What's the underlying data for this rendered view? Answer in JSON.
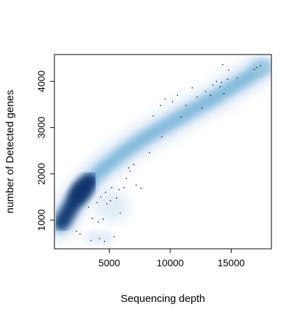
{
  "chart_data": {
    "type": "scatter",
    "subtype": "smoothed-density-scatter",
    "xlabel": "Sequencing depth",
    "ylabel": "number of Detected genes",
    "xlim": [
      500,
      18300
    ],
    "ylim": [
      380,
      4580
    ],
    "xticks": [
      5000,
      10000,
      15000
    ],
    "xtick_labels": [
      "5000",
      "10000",
      "15000"
    ],
    "yticks": [
      1000,
      2000,
      3000,
      4000
    ],
    "ytick_labels": [
      "1000",
      "2000",
      "3000",
      "4000"
    ],
    "grid": false,
    "density_color": "#08306b",
    "density_trend": [
      {
        "x": 1000,
        "y": 880
      },
      {
        "x": 1500,
        "y": 1100
      },
      {
        "x": 2000,
        "y": 1380
      },
      {
        "x": 2500,
        "y": 1580
      },
      {
        "x": 3000,
        "y": 1720
      },
      {
        "x": 3500,
        "y": 1870
      },
      {
        "x": 4000,
        "y": 2000
      },
      {
        "x": 4500,
        "y": 2120
      },
      {
        "x": 5000,
        "y": 2220
      },
      {
        "x": 6000,
        "y": 2430
      },
      {
        "x": 7000,
        "y": 2620
      },
      {
        "x": 8000,
        "y": 2790
      },
      {
        "x": 9000,
        "y": 2950
      },
      {
        "x": 10000,
        "y": 3100
      },
      {
        "x": 11000,
        "y": 3250
      },
      {
        "x": 12000,
        "y": 3400
      },
      {
        "x": 13000,
        "y": 3550
      },
      {
        "x": 14000,
        "y": 3700
      },
      {
        "x": 15000,
        "y": 3870
      },
      {
        "x": 16000,
        "y": 4020
      },
      {
        "x": 17000,
        "y": 4200
      },
      {
        "x": 17600,
        "y": 4300
      }
    ],
    "outlier_points": [
      {
        "x": 2300,
        "y": 760
      },
      {
        "x": 2600,
        "y": 700
      },
      {
        "x": 3500,
        "y": 560
      },
      {
        "x": 4200,
        "y": 600
      },
      {
        "x": 4600,
        "y": 540
      },
      {
        "x": 5400,
        "y": 640
      },
      {
        "x": 3600,
        "y": 1040
      },
      {
        "x": 4100,
        "y": 960
      },
      {
        "x": 4500,
        "y": 1020
      },
      {
        "x": 3300,
        "y": 1280
      },
      {
        "x": 4000,
        "y": 1380
      },
      {
        "x": 4300,
        "y": 1500
      },
      {
        "x": 4800,
        "y": 1350
      },
      {
        "x": 5100,
        "y": 1420
      },
      {
        "x": 5600,
        "y": 1480
      },
      {
        "x": 5900,
        "y": 1150
      },
      {
        "x": 4700,
        "y": 1600
      },
      {
        "x": 5200,
        "y": 1700
      },
      {
        "x": 5800,
        "y": 1660
      },
      {
        "x": 6200,
        "y": 1700
      },
      {
        "x": 7200,
        "y": 1760
      },
      {
        "x": 7600,
        "y": 1690
      },
      {
        "x": 6400,
        "y": 1900
      },
      {
        "x": 6700,
        "y": 2060
      },
      {
        "x": 6600,
        "y": 2130
      },
      {
        "x": 7000,
        "y": 2200
      },
      {
        "x": 8300,
        "y": 2460
      },
      {
        "x": 9300,
        "y": 2800
      },
      {
        "x": 8600,
        "y": 3250
      },
      {
        "x": 9200,
        "y": 3480
      },
      {
        "x": 9600,
        "y": 3620
      },
      {
        "x": 10200,
        "y": 3560
      },
      {
        "x": 10600,
        "y": 3700
      },
      {
        "x": 10900,
        "y": 3230
      },
      {
        "x": 11300,
        "y": 3480
      },
      {
        "x": 11800,
        "y": 3860
      },
      {
        "x": 12200,
        "y": 3660
      },
      {
        "x": 12600,
        "y": 3420
      },
      {
        "x": 12900,
        "y": 3780
      },
      {
        "x": 13300,
        "y": 3700
      },
      {
        "x": 13500,
        "y": 3920
      },
      {
        "x": 13800,
        "y": 4000
      },
      {
        "x": 14100,
        "y": 3880
      },
      {
        "x": 14200,
        "y": 3980
      },
      {
        "x": 14400,
        "y": 3740
      },
      {
        "x": 14700,
        "y": 4050
      },
      {
        "x": 14300,
        "y": 4360
      },
      {
        "x": 14800,
        "y": 4240
      },
      {
        "x": 15500,
        "y": 4070
      },
      {
        "x": 16900,
        "y": 4260
      },
      {
        "x": 17100,
        "y": 4300
      },
      {
        "x": 17400,
        "y": 4340
      }
    ]
  }
}
